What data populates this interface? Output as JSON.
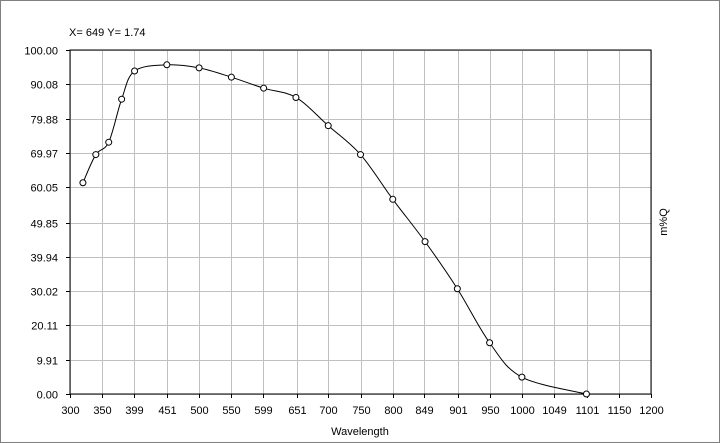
{
  "readout": {
    "x_label": "X=",
    "x_value": "649",
    "y_label": "Y=",
    "y_value": "1.74"
  },
  "chart_data": {
    "type": "line",
    "title": "",
    "xlabel": "Wavelength",
    "ylabel": "m%Q",
    "xlim": [
      300,
      1200
    ],
    "ylim": [
      0,
      100
    ],
    "grid": true,
    "x_ticks": [
      {
        "value": 300,
        "label": "300"
      },
      {
        "value": 350,
        "label": "350"
      },
      {
        "value": 399,
        "label": "399"
      },
      {
        "value": 451,
        "label": "451"
      },
      {
        "value": 500,
        "label": "500"
      },
      {
        "value": 550,
        "label": "550"
      },
      {
        "value": 599,
        "label": "599"
      },
      {
        "value": 651,
        "label": "651"
      },
      {
        "value": 700,
        "label": "700"
      },
      {
        "value": 750,
        "label": "750"
      },
      {
        "value": 800,
        "label": "800"
      },
      {
        "value": 849,
        "label": "849"
      },
      {
        "value": 901,
        "label": "901"
      },
      {
        "value": 950,
        "label": "950"
      },
      {
        "value": 1000,
        "label": "1000"
      },
      {
        "value": 1049,
        "label": "1049"
      },
      {
        "value": 1101,
        "label": "1101"
      },
      {
        "value": 1150,
        "label": "1150"
      },
      {
        "value": 1200,
        "label": "1200"
      }
    ],
    "y_ticks": [
      {
        "value": 0,
        "label": "0.00"
      },
      {
        "value": 9.91,
        "label": "9.91"
      },
      {
        "value": 20.11,
        "label": "20.11"
      },
      {
        "value": 30.02,
        "label": "30.02"
      },
      {
        "value": 39.94,
        "label": "39.94"
      },
      {
        "value": 49.85,
        "label": "49.85"
      },
      {
        "value": 60.05,
        "label": "60.05"
      },
      {
        "value": 69.97,
        "label": "69.97"
      },
      {
        "value": 79.88,
        "label": "79.88"
      },
      {
        "value": 90.08,
        "label": "90.08"
      },
      {
        "value": 100,
        "label": "100.00"
      }
    ],
    "series": [
      {
        "x": [
          320,
          340,
          360,
          380,
          400,
          450,
          500,
          550,
          600,
          650,
          700,
          750,
          800,
          850,
          900,
          950,
          1000,
          1100
        ],
        "y": [
          61.4,
          69.6,
          73.2,
          85.7,
          93.9,
          95.7,
          94.8,
          92.1,
          88.9,
          86.2,
          78.0,
          69.6,
          56.6,
          44.3,
          30.6,
          14.9,
          4.9,
          0.0
        ]
      }
    ]
  }
}
